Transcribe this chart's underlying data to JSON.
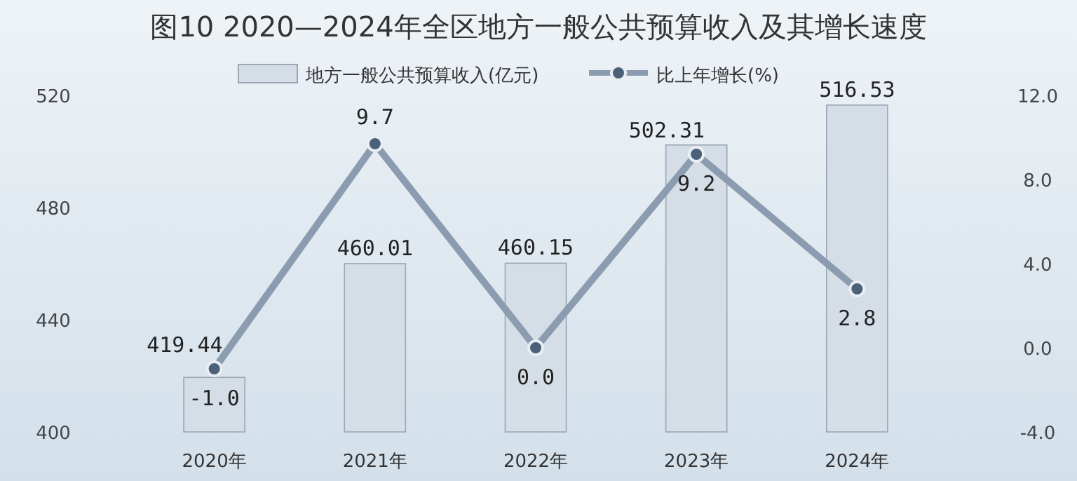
{
  "chart_data": {
    "type": "bar",
    "title": "图10  2020—2024年全区地方一般公共预算收入及其增长速度",
    "categories": [
      "2020年",
      "2021年",
      "2022年",
      "2023年",
      "2024年"
    ],
    "series": [
      {
        "name": "地方一般公共预算收入(亿元)",
        "color": "#d5dde6",
        "values": [
          419.44,
          460.01,
          460.15,
          502.31,
          516.53
        ],
        "value_labels": [
          "419.44",
          "460.01",
          "460.15",
          "502.31",
          "516.53"
        ]
      },
      {
        "name": "比上年增长(%)",
        "type": "line",
        "axis": "y2",
        "color": "#8c9cb0",
        "marker": "circle",
        "values": [
          -1.0,
          9.7,
          0.0,
          9.2,
          2.8
        ],
        "value_labels": [
          "-1.0",
          "9.7",
          "0.0",
          "9.2",
          "2.8"
        ]
      }
    ],
    "ylim": [
      400,
      520
    ],
    "yticks": [
      400,
      440,
      480,
      520
    ],
    "y2lim": [
      -4,
      12
    ],
    "y2ticks": [
      {
        "value": -4,
        "label": "-4.0"
      },
      {
        "value": 0,
        "label": "0.0"
      },
      {
        "value": 4,
        "label": "4.0"
      },
      {
        "value": 8,
        "label": "8.0"
      },
      {
        "value": 12,
        "label": "12.0"
      }
    ],
    "legend": "top",
    "grid": false
  }
}
